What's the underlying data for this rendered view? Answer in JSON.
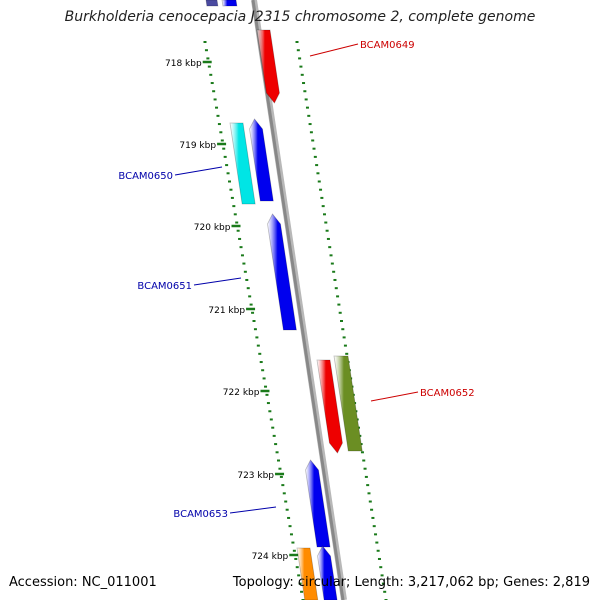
{
  "title": "Burkholderia cenocepacia J2315 chromosome 2, complete genome",
  "accession": "Accession: NC_011001",
  "summary": "Topology: circular; Length: 3,217,062 bp; Genes: 2,819",
  "ticks": [
    {
      "label": "718 kbp"
    },
    {
      "label": "719 kbp"
    },
    {
      "label": "720 kbp"
    },
    {
      "label": "721 kbp"
    },
    {
      "label": "722 kbp"
    },
    {
      "label": "723 kbp"
    },
    {
      "label": "724 kbp"
    }
  ],
  "genes": [
    {
      "name": "BCAM0649",
      "color": "#cc0000"
    },
    {
      "name": "BCAM0650",
      "color": "#0000aa"
    },
    {
      "name": "BCAM0651",
      "color": "#0000aa"
    },
    {
      "name": "BCAM0652",
      "color": "#cc0000"
    },
    {
      "name": "BCAM0653",
      "color": "#0000aa"
    }
  ],
  "colors": {
    "backbone": "#888888",
    "tick_marks": "#1a7a1a",
    "feature_red": "#ee0000",
    "feature_blue": "#0000ee",
    "feature_cyan": "#00e5e5",
    "feature_olive": "#6b8e23",
    "feature_orange": "#ff8c00"
  }
}
